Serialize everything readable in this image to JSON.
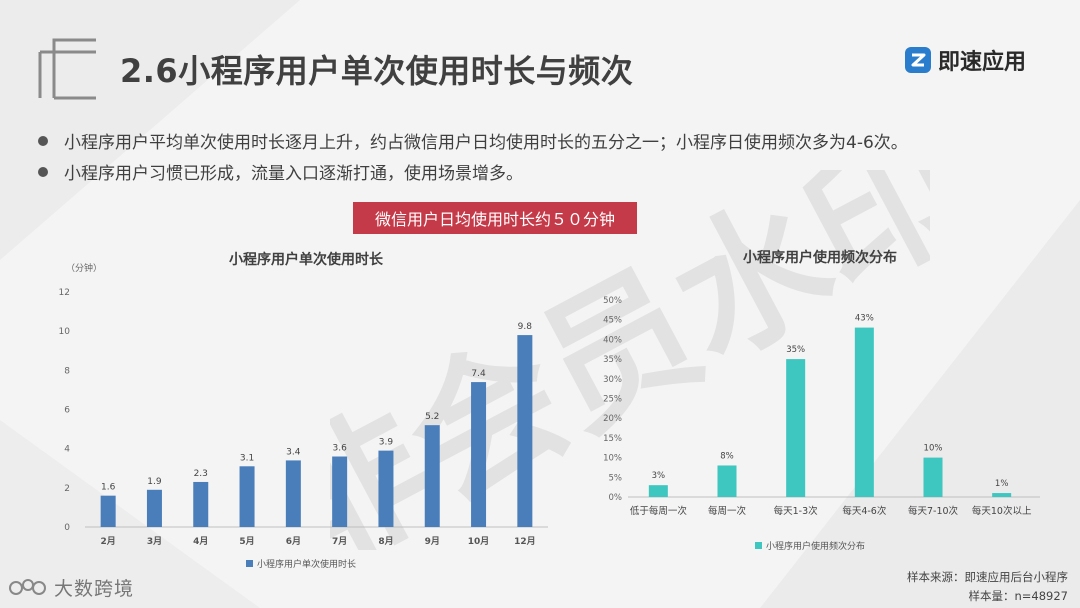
{
  "page": {
    "title": "2.6小程序用户单次使用时长与频次",
    "brand": "即速应用",
    "bullets": [
      "小程序用户平均单次使用时长逐月上升，约占微信用户日均使用时长的五分之一；小程序日使用频次多为4-6次。",
      "小程序用户习惯已形成，流量入口逐渐打通，使用场景增多。"
    ],
    "callout": "微信用户日均使用时长约５０分钟",
    "footer_logo": "大数跨境",
    "source_line1": "样本来源：即速应用后台小程序",
    "source_line2": "样本量：n=48927",
    "watermark": "非会员水印",
    "colors": {
      "bar_blue": "#4a7ebb",
      "bar_teal": "#3ec6c0",
      "callout_red": "#c53a48",
      "brand_blue": "#2a7ccc"
    }
  },
  "chart_data": [
    {
      "type": "bar",
      "title": "小程序用户单次使用时长",
      "ylabel": "（分钟）",
      "categories": [
        "2月",
        "3月",
        "4月",
        "5月",
        "6月",
        "7月",
        "8月",
        "9月",
        "10月",
        "12月"
      ],
      "series": [
        {
          "name": "小程序用户单次使用时长",
          "values": [
            1.6,
            1.9,
            2.3,
            3.1,
            3.4,
            3.6,
            3.9,
            5.2,
            7.4,
            9.8
          ]
        }
      ],
      "ylim": [
        0,
        12
      ],
      "yticks": [
        0,
        2,
        4,
        6,
        8,
        10,
        12
      ],
      "value_labels": [
        "1.6",
        "1.9",
        "2.3",
        "3.1",
        "3.4",
        "3.6",
        "3.9",
        "5.2",
        "7.4",
        "9.8"
      ],
      "legend": "bottom",
      "grid": false
    },
    {
      "type": "bar",
      "title": "小程序用户使用频次分布",
      "categories": [
        "低于每周一次",
        "每周一次",
        "每天1-3次",
        "每天4-6次",
        "每天7-10次",
        "每天10次以上"
      ],
      "series": [
        {
          "name": "小程序用户使用频次分布",
          "values": [
            3,
            8,
            35,
            43,
            10,
            1
          ]
        }
      ],
      "ylim": [
        0,
        50
      ],
      "ytick_labels": [
        "0%",
        "5%",
        "10%",
        "15%",
        "20%",
        "25%",
        "30%",
        "35%",
        "40%",
        "45%",
        "50%"
      ],
      "value_labels": [
        "3%",
        "8%",
        "35%",
        "43%",
        "10%",
        "1%"
      ],
      "legend": "bottom",
      "grid": false
    }
  ]
}
